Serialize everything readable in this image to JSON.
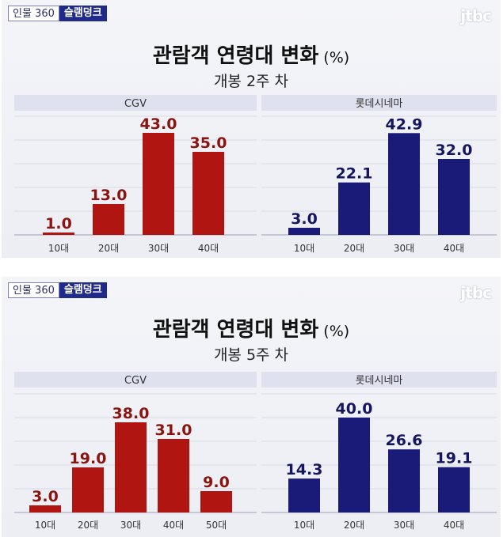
{
  "badge": {
    "program": "인물 360",
    "topic": "슬램덩크"
  },
  "logo": "jtbc",
  "colors": {
    "cgv": "#b11512",
    "lotte": "#1a1a78",
    "label_cgv": "#8c1410",
    "label_lotte": "#151560"
  },
  "chart_data": [
    {
      "type": "bar",
      "title": "관람객 연령대 변화",
      "unit": "(%)",
      "subtitle": "개봉 2주 차",
      "groups": [
        {
          "name": "CGV",
          "categories": [
            "10대",
            "20대",
            "30대",
            "40대"
          ],
          "values": [
            1.0,
            13.0,
            43.0,
            35.0
          ]
        },
        {
          "name": "롯데시네마",
          "categories": [
            "10대",
            "20대",
            "30대",
            "40대"
          ],
          "values": [
            3.0,
            22.1,
            42.9,
            32.0
          ]
        }
      ]
    },
    {
      "type": "bar",
      "title": "관람객 연령대 변화",
      "unit": "(%)",
      "subtitle": "개봉 5주 차",
      "groups": [
        {
          "name": "CGV",
          "categories": [
            "10대",
            "20대",
            "30대",
            "40대",
            "50대"
          ],
          "values": [
            3.0,
            19.0,
            38.0,
            31.0,
            9.0
          ]
        },
        {
          "name": "롯데시네마",
          "categories": [
            "10대",
            "20대",
            "30대",
            "40대"
          ],
          "values": [
            14.3,
            40.0,
            26.6,
            19.1
          ]
        }
      ]
    }
  ]
}
